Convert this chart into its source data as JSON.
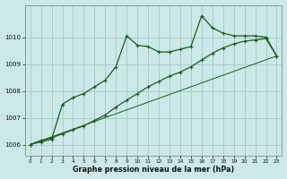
{
  "bg_color": "#cce8e8",
  "grid_color": "#aacccc",
  "line_color": "#1a5c1a",
  "title": "Graphe pression niveau de la mer (hPa)",
  "xlim": [
    -0.5,
    23.5
  ],
  "ylim": [
    1005.6,
    1011.2
  ],
  "yticks": [
    1006,
    1007,
    1008,
    1009,
    1010
  ],
  "xticks": [
    0,
    1,
    2,
    3,
    4,
    5,
    6,
    7,
    8,
    9,
    10,
    11,
    12,
    13,
    14,
    15,
    16,
    17,
    18,
    19,
    20,
    21,
    22,
    23
  ],
  "series1_x": [
    0,
    1,
    2,
    3,
    4,
    5,
    6,
    7,
    8,
    9,
    10,
    11,
    12,
    13,
    14,
    15,
    16,
    17,
    18,
    19,
    20,
    21,
    22,
    23
  ],
  "series1_y": [
    1006.0,
    1006.1,
    1006.2,
    1007.5,
    1007.75,
    1007.9,
    1008.15,
    1008.4,
    1008.9,
    1010.05,
    1009.7,
    1009.65,
    1009.45,
    1009.45,
    1009.55,
    1009.65,
    1010.8,
    1010.35,
    1010.15,
    1010.05,
    1010.05,
    1010.05,
    1010.0,
    1009.3
  ],
  "series2_x": [
    0,
    1,
    2,
    3,
    4,
    5,
    6,
    7,
    8,
    9,
    10,
    11,
    12,
    13,
    14,
    15,
    16,
    17,
    18,
    19,
    20,
    21,
    22,
    23
  ],
  "series2_y": [
    1006.0,
    1006.15,
    1006.25,
    1006.4,
    1006.55,
    1006.7,
    1006.9,
    1007.1,
    1007.4,
    1007.65,
    1007.9,
    1008.15,
    1008.35,
    1008.55,
    1008.7,
    1008.9,
    1009.15,
    1009.4,
    1009.6,
    1009.75,
    1009.85,
    1009.9,
    1009.95,
    1009.3
  ],
  "series3_x": [
    0,
    23
  ],
  "series3_y": [
    1006.0,
    1009.3
  ]
}
